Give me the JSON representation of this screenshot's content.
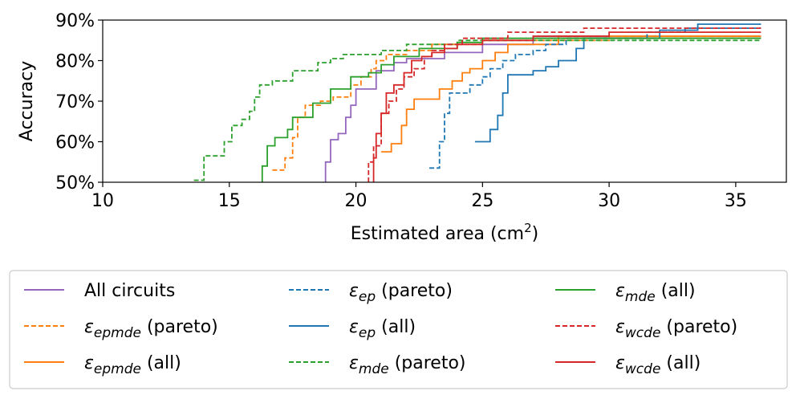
{
  "chart_data": {
    "type": "line",
    "subtype": "step",
    "xlabel": "Estimated area (cm",
    "xlabel_sup": "2",
    "xlabel_close": ")",
    "ylabel": "Accuracy",
    "xlim": [
      10,
      37
    ],
    "ylim": [
      50,
      90
    ],
    "xticks": [
      10,
      15,
      20,
      25,
      30,
      35
    ],
    "yticks": [
      50,
      60,
      70,
      80,
      90
    ],
    "ytick_labels": [
      "50%",
      "60%",
      "70%",
      "80%",
      "90%"
    ],
    "legend_position": "below",
    "series": [
      {
        "name": "All circuits",
        "symbol": "",
        "subscript": "",
        "suffix": "",
        "color": "#9467bd",
        "dash": "solid",
        "points": [
          [
            18.8,
            50
          ],
          [
            18.8,
            55
          ],
          [
            19.0,
            55
          ],
          [
            19.0,
            60.5
          ],
          [
            19.3,
            60.5
          ],
          [
            19.3,
            62
          ],
          [
            19.6,
            62
          ],
          [
            19.6,
            66
          ],
          [
            19.8,
            66
          ],
          [
            19.8,
            69
          ],
          [
            20.0,
            69
          ],
          [
            20.0,
            73
          ],
          [
            20.8,
            73
          ],
          [
            20.8,
            77.5
          ],
          [
            21.5,
            77.5
          ],
          [
            21.5,
            79.5
          ],
          [
            22.0,
            79.5
          ],
          [
            22.0,
            80.5
          ],
          [
            23.5,
            80.5
          ],
          [
            23.5,
            82
          ],
          [
            25.0,
            82
          ],
          [
            25.0,
            84
          ],
          [
            27.0,
            84
          ],
          [
            27.0,
            86
          ],
          [
            36,
            86
          ]
        ]
      },
      {
        "name": "epmde (pareto)",
        "symbol": "ε",
        "subscript": "epmde",
        "suffix": " (pareto)",
        "color": "#ff7f0e",
        "dash": "dashed",
        "points": [
          [
            16.7,
            53
          ],
          [
            17.2,
            53
          ],
          [
            17.2,
            56
          ],
          [
            17.5,
            56
          ],
          [
            17.5,
            61
          ],
          [
            17.7,
            61
          ],
          [
            17.7,
            66
          ],
          [
            18.0,
            66
          ],
          [
            18.0,
            69
          ],
          [
            18.6,
            69
          ],
          [
            18.6,
            70
          ],
          [
            19.1,
            70
          ],
          [
            19.1,
            71
          ],
          [
            19.8,
            71
          ],
          [
            19.8,
            74
          ],
          [
            20.2,
            74
          ],
          [
            20.2,
            76
          ],
          [
            20.6,
            76
          ],
          [
            20.6,
            78
          ],
          [
            20.8,
            78
          ],
          [
            20.8,
            80
          ],
          [
            21.2,
            80
          ],
          [
            21.2,
            81.5
          ],
          [
            22.0,
            81.5
          ],
          [
            22.0,
            82.5
          ],
          [
            23.0,
            82.5
          ],
          [
            23.0,
            84
          ],
          [
            25.0,
            84
          ],
          [
            25.0,
            85
          ],
          [
            30.0,
            85
          ],
          [
            30.0,
            86
          ],
          [
            36,
            86
          ]
        ]
      },
      {
        "name": "epmde (all)",
        "symbol": "ε",
        "subscript": "epmde",
        "suffix": " (all)",
        "color": "#ff7f0e",
        "dash": "solid",
        "points": [
          [
            21.0,
            57.5
          ],
          [
            21.4,
            57.5
          ],
          [
            21.4,
            59.5
          ],
          [
            21.8,
            59.5
          ],
          [
            21.8,
            64
          ],
          [
            22.0,
            64
          ],
          [
            22.0,
            68
          ],
          [
            22.3,
            68
          ],
          [
            22.3,
            70.5
          ],
          [
            23.3,
            70.5
          ],
          [
            23.3,
            73
          ],
          [
            23.8,
            73
          ],
          [
            23.8,
            75
          ],
          [
            24.2,
            75
          ],
          [
            24.2,
            77
          ],
          [
            24.5,
            77
          ],
          [
            24.5,
            78
          ],
          [
            25.0,
            78
          ],
          [
            25.0,
            80
          ],
          [
            25.5,
            80
          ],
          [
            25.5,
            82
          ],
          [
            26.0,
            82
          ],
          [
            26.0,
            84
          ],
          [
            28.0,
            84
          ],
          [
            28.0,
            86
          ],
          [
            36,
            86
          ]
        ]
      },
      {
        "name": "ep (pareto)",
        "symbol": "ε",
        "subscript": "ep",
        "suffix": " (pareto)",
        "color": "#1f77b4",
        "dash": "dashed",
        "points": [
          [
            22.9,
            53.5
          ],
          [
            23.3,
            53.5
          ],
          [
            23.3,
            60
          ],
          [
            23.5,
            60
          ],
          [
            23.5,
            67
          ],
          [
            23.7,
            67
          ],
          [
            23.7,
            72
          ],
          [
            24.5,
            72
          ],
          [
            24.5,
            74
          ],
          [
            25.0,
            74
          ],
          [
            25.0,
            76
          ],
          [
            25.3,
            76
          ],
          [
            25.3,
            78
          ],
          [
            25.8,
            78
          ],
          [
            25.8,
            80
          ],
          [
            26.3,
            80
          ],
          [
            26.3,
            81.5
          ],
          [
            27.0,
            81.5
          ],
          [
            27.0,
            82.5
          ],
          [
            27.5,
            82.5
          ],
          [
            27.5,
            84
          ],
          [
            28.3,
            84
          ],
          [
            28.3,
            85.5
          ],
          [
            31.5,
            85.5
          ],
          [
            31.5,
            87
          ],
          [
            33.0,
            87
          ],
          [
            33.0,
            88
          ],
          [
            36,
            88
          ]
        ]
      },
      {
        "name": "ep (all)",
        "symbol": "ε",
        "subscript": "ep",
        "suffix": " (all)",
        "color": "#1f77b4",
        "dash": "solid",
        "points": [
          [
            24.7,
            60
          ],
          [
            25.3,
            60
          ],
          [
            25.3,
            63
          ],
          [
            25.6,
            63
          ],
          [
            25.6,
            66.5
          ],
          [
            25.8,
            66.5
          ],
          [
            25.8,
            72
          ],
          [
            26.0,
            72
          ],
          [
            26.0,
            76.5
          ],
          [
            27.0,
            76.5
          ],
          [
            27.0,
            77.5
          ],
          [
            27.5,
            77.5
          ],
          [
            27.5,
            78.5
          ],
          [
            28.0,
            78.5
          ],
          [
            28.0,
            80
          ],
          [
            28.7,
            80
          ],
          [
            28.7,
            83
          ],
          [
            29.0,
            83
          ],
          [
            29.0,
            85.5
          ],
          [
            32.0,
            85.5
          ],
          [
            32.0,
            87.5
          ],
          [
            33.5,
            87.5
          ],
          [
            33.5,
            89
          ],
          [
            36,
            89
          ]
        ]
      },
      {
        "name": "mde (pareto)",
        "symbol": "ε",
        "subscript": "mde",
        "suffix": " (pareto)",
        "color": "#2ca02c",
        "dash": "dashed",
        "points": [
          [
            13.6,
            50.5
          ],
          [
            14.0,
            50.5
          ],
          [
            14.0,
            56.5
          ],
          [
            14.8,
            56.5
          ],
          [
            14.8,
            60
          ],
          [
            15.1,
            60
          ],
          [
            15.1,
            64
          ],
          [
            15.5,
            64
          ],
          [
            15.5,
            65.5
          ],
          [
            15.8,
            65.5
          ],
          [
            15.8,
            67.5
          ],
          [
            16.0,
            67.5
          ],
          [
            16.0,
            71
          ],
          [
            16.2,
            71
          ],
          [
            16.2,
            74
          ],
          [
            16.7,
            74
          ],
          [
            16.7,
            75
          ],
          [
            17.5,
            75
          ],
          [
            17.5,
            77.5
          ],
          [
            18.5,
            77.5
          ],
          [
            18.5,
            79.5
          ],
          [
            19.0,
            79.5
          ],
          [
            19.0,
            80.5
          ],
          [
            19.5,
            80.5
          ],
          [
            19.5,
            81.5
          ],
          [
            21.0,
            81.5
          ],
          [
            21.0,
            82.5
          ],
          [
            22.0,
            82.5
          ],
          [
            22.0,
            84
          ],
          [
            24.0,
            84
          ],
          [
            24.0,
            85
          ],
          [
            36,
            85
          ]
        ]
      },
      {
        "name": "mde (all)",
        "symbol": "ε",
        "subscript": "mde",
        "suffix": " (all)",
        "color": "#2ca02c",
        "dash": "solid",
        "points": [
          [
            16.3,
            50
          ],
          [
            16.3,
            54
          ],
          [
            16.5,
            54
          ],
          [
            16.5,
            59
          ],
          [
            16.8,
            59
          ],
          [
            16.8,
            61
          ],
          [
            17.3,
            61
          ],
          [
            17.3,
            63
          ],
          [
            17.5,
            63
          ],
          [
            17.5,
            66
          ],
          [
            18.3,
            66
          ],
          [
            18.3,
            69.5
          ],
          [
            19.0,
            69.5
          ],
          [
            19.0,
            73
          ],
          [
            19.8,
            73
          ],
          [
            19.8,
            76
          ],
          [
            20.5,
            76
          ],
          [
            20.5,
            77
          ],
          [
            21.0,
            77
          ],
          [
            21.0,
            79
          ],
          [
            21.5,
            79
          ],
          [
            21.5,
            81
          ],
          [
            22.5,
            81
          ],
          [
            22.5,
            83
          ],
          [
            24.0,
            83
          ],
          [
            24.0,
            84.5
          ],
          [
            25.0,
            84.5
          ],
          [
            25.0,
            85.5
          ],
          [
            36,
            85.5
          ]
        ]
      },
      {
        "name": "wcde (pareto)",
        "symbol": "ε",
        "subscript": "wcde",
        "suffix": " (pareto)",
        "color": "#d62728",
        "dash": "dashed",
        "points": [
          [
            20.5,
            50
          ],
          [
            20.5,
            55
          ],
          [
            20.7,
            55
          ],
          [
            20.7,
            59
          ],
          [
            21.0,
            59
          ],
          [
            21.0,
            67
          ],
          [
            21.3,
            67
          ],
          [
            21.3,
            70
          ],
          [
            21.6,
            70
          ],
          [
            21.6,
            73
          ],
          [
            21.9,
            73
          ],
          [
            21.9,
            76
          ],
          [
            22.3,
            76
          ],
          [
            22.3,
            78
          ],
          [
            22.7,
            78
          ],
          [
            22.7,
            81
          ],
          [
            23.0,
            81
          ],
          [
            23.0,
            82.5
          ],
          [
            23.5,
            82.5
          ],
          [
            23.5,
            84
          ],
          [
            24.2,
            84
          ],
          [
            24.2,
            85.5
          ],
          [
            26.0,
            85.5
          ],
          [
            26.0,
            87
          ],
          [
            29.0,
            87
          ],
          [
            29.0,
            88
          ],
          [
            36,
            88
          ]
        ]
      },
      {
        "name": "wcde (all)",
        "symbol": "ε",
        "subscript": "wcde",
        "suffix": " (all)",
        "color": "#d62728",
        "dash": "solid",
        "points": [
          [
            20.7,
            50
          ],
          [
            20.7,
            56
          ],
          [
            20.8,
            56
          ],
          [
            20.8,
            62
          ],
          [
            21.0,
            62
          ],
          [
            21.0,
            67
          ],
          [
            21.2,
            67
          ],
          [
            21.2,
            72
          ],
          [
            21.5,
            72
          ],
          [
            21.5,
            74
          ],
          [
            21.9,
            74
          ],
          [
            21.9,
            77
          ],
          [
            22.2,
            77
          ],
          [
            22.2,
            80
          ],
          [
            22.6,
            80
          ],
          [
            22.6,
            81
          ],
          [
            23.0,
            81
          ],
          [
            23.0,
            82
          ],
          [
            23.5,
            82
          ],
          [
            23.5,
            83
          ],
          [
            24.0,
            83
          ],
          [
            24.0,
            84
          ],
          [
            25.0,
            84
          ],
          [
            25.0,
            85
          ],
          [
            27.0,
            85
          ],
          [
            27.0,
            86
          ],
          [
            30.0,
            86
          ],
          [
            30.0,
            87
          ],
          [
            36,
            87
          ]
        ]
      }
    ]
  },
  "legend_order": [
    0,
    1,
    2,
    3,
    4,
    5,
    6,
    7,
    8
  ]
}
